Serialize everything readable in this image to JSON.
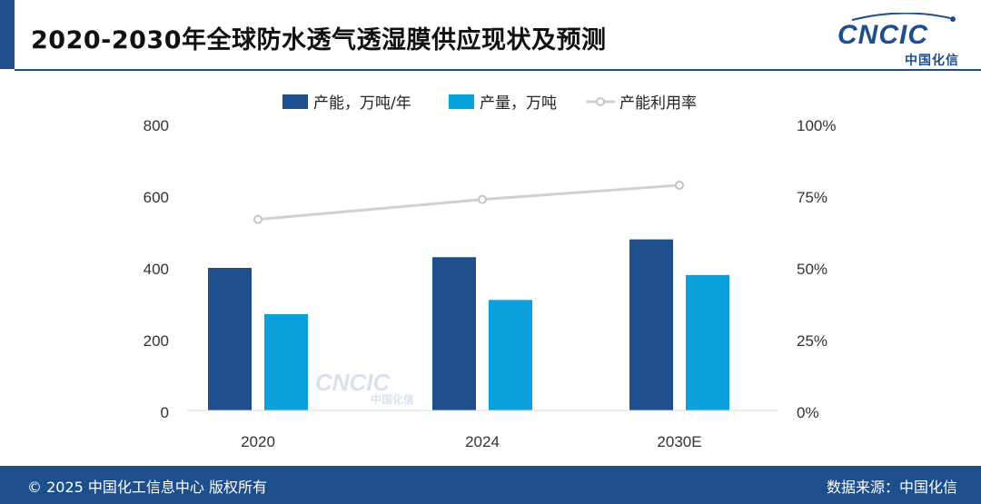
{
  "header": {
    "title": "2020-2030年全球防水透气透湿膜供应现状及预测",
    "logo_text": "CNCIC",
    "logo_subtext": "中国化信"
  },
  "footer": {
    "copyright": "© 2025 中国化工信息中心  版权所有",
    "source": "数据来源：中国化信"
  },
  "watermark": {
    "text": "CNCIC",
    "subtext": "中国化信"
  },
  "colors": {
    "brand": "#1f4e8c",
    "capacity": "#1f4e8c",
    "output": "#0aa0dc",
    "utilization": "#d0d0d0"
  },
  "chart_data": {
    "type": "bar",
    "title": "2020-2030年全球防水透气透湿膜供应现状及预测",
    "categories": [
      "2020",
      "2024",
      "2030E"
    ],
    "series": [
      {
        "name": "产能，万吨/年",
        "kind": "bar",
        "axis": "left",
        "values": [
          400,
          430,
          480
        ]
      },
      {
        "name": "产量，万吨",
        "kind": "bar",
        "axis": "left",
        "values": [
          270,
          310,
          380
        ]
      },
      {
        "name": "产能利用率",
        "kind": "line",
        "axis": "right",
        "values": [
          67,
          74,
          79
        ]
      }
    ],
    "y_left": {
      "min": 0,
      "max": 800,
      "ticks": [
        0,
        200,
        400,
        600,
        800
      ],
      "tick_labels": [
        "0",
        "200",
        "400",
        "600",
        "800"
      ]
    },
    "y_right": {
      "min": 0,
      "max": 100,
      "ticks": [
        0,
        25,
        50,
        75,
        100
      ],
      "tick_labels": [
        "0%",
        "25%",
        "50%",
        "75%",
        "100%"
      ]
    },
    "legend_position": "top-center",
    "grid": false
  }
}
